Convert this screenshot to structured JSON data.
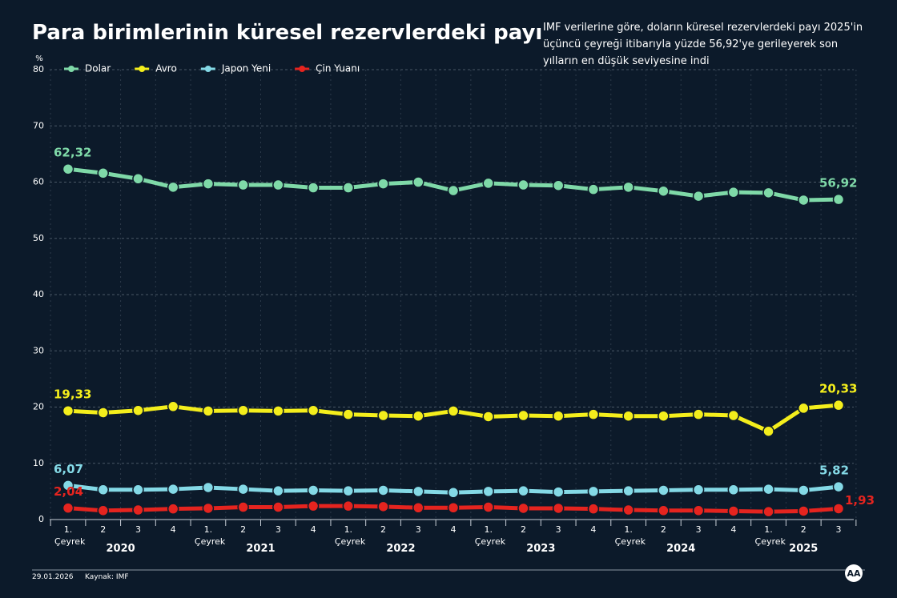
{
  "chart_data": {
    "type": "line",
    "title": "Para birimlerinin küresel rezervlerdeki payı",
    "subtitle": "IMF verilerine göre, doların küresel rezervlerdeki payı 2025'in üçüncü çeyreği itibarıyla yüzde 56,92'ye gerileyerek son yılların en düşük seviyesine indi",
    "y_label": "%",
    "date": "29.01.2026",
    "source": "Kaynak: IMF",
    "categories": [
      "1. Çeyrek",
      "2",
      "3",
      "4",
      "1. Çeyrek",
      "2",
      "3",
      "4",
      "1. Çeyrek",
      "2",
      "3",
      "4",
      "1. Çeyrek",
      "2",
      "3",
      "4",
      "1. Çeyrek",
      "2",
      "3",
      "4",
      "1. Çeyrek",
      "2",
      "3"
    ],
    "years": [
      "2020",
      "2021",
      "2022",
      "2023",
      "2024",
      "2025"
    ],
    "ylim": [
      0,
      80
    ],
    "yticks": [
      0,
      10,
      20,
      30,
      40,
      50,
      60,
      70,
      80
    ],
    "grid": true,
    "legend": "top-left",
    "series": [
      {
        "name": "Dolar",
        "color": "#7fd9a8",
        "values": [
          62.32,
          61.6,
          60.6,
          59.1,
          59.7,
          59.5,
          59.5,
          59.0,
          59.0,
          59.7,
          60.0,
          58.5,
          59.8,
          59.5,
          59.4,
          58.7,
          59.1,
          58.4,
          57.5,
          58.2,
          58.1,
          56.8,
          56.92
        ],
        "value_labels": [
          "62,32",
          null,
          null,
          null,
          null,
          null,
          null,
          null,
          null,
          null,
          null,
          null,
          null,
          null,
          null,
          null,
          null,
          null,
          null,
          null,
          null,
          null,
          "56,92"
        ]
      },
      {
        "name": "Avro",
        "color": "#f4ee1c",
        "values": [
          19.33,
          19.0,
          19.4,
          20.1,
          19.3,
          19.4,
          19.3,
          19.4,
          18.7,
          18.5,
          18.4,
          19.3,
          18.3,
          18.5,
          18.4,
          18.7,
          18.4,
          18.4,
          18.7,
          18.5,
          15.7,
          19.8,
          20.33
        ],
        "value_labels": [
          "19,33",
          null,
          null,
          null,
          null,
          null,
          null,
          null,
          null,
          null,
          null,
          null,
          null,
          null,
          null,
          null,
          null,
          null,
          null,
          null,
          null,
          null,
          "20,33"
        ]
      },
      {
        "name": "Japon Yeni",
        "color": "#84d9e6",
        "values": [
          6.07,
          5.3,
          5.3,
          5.4,
          5.7,
          5.4,
          5.1,
          5.2,
          5.1,
          5.2,
          5.0,
          4.8,
          5.0,
          5.1,
          4.9,
          5.0,
          5.1,
          5.2,
          5.3,
          5.3,
          5.4,
          5.2,
          5.82
        ],
        "value_labels": [
          "6,07",
          null,
          null,
          null,
          null,
          null,
          null,
          null,
          null,
          null,
          null,
          null,
          null,
          null,
          null,
          null,
          null,
          null,
          null,
          null,
          null,
          null,
          "5,82"
        ]
      },
      {
        "name": "Çin Yuanı",
        "color": "#e5241f",
        "values": [
          2.04,
          1.6,
          1.7,
          1.9,
          2.0,
          2.2,
          2.2,
          2.4,
          2.4,
          2.3,
          2.1,
          2.1,
          2.2,
          2.0,
          2.0,
          1.9,
          1.7,
          1.6,
          1.6,
          1.5,
          1.4,
          1.5,
          1.93
        ],
        "value_labels": [
          "2,04",
          null,
          null,
          null,
          null,
          null,
          null,
          null,
          null,
          null,
          null,
          null,
          null,
          null,
          null,
          null,
          null,
          null,
          null,
          null,
          null,
          null,
          "1,93"
        ]
      }
    ]
  }
}
